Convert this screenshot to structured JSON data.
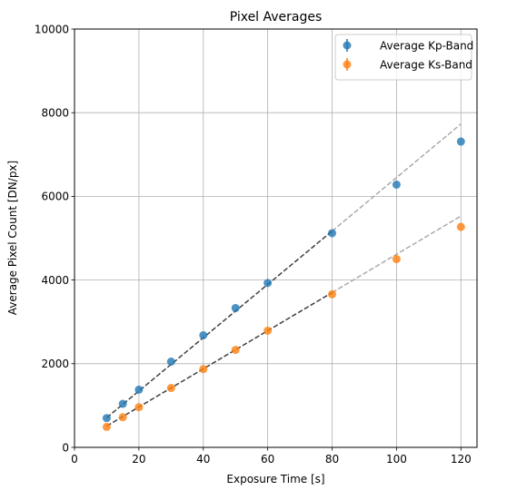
{
  "chart_data": {
    "type": "scatter",
    "title": "Pixel Averages",
    "xlabel": "Exposure Time [s]",
    "ylabel": "Average Pixel Count [DN/px]",
    "xlim": [
      0,
      125
    ],
    "ylim": [
      0,
      10000
    ],
    "xticks": [
      0,
      20,
      40,
      60,
      80,
      100,
      120
    ],
    "yticks": [
      0,
      2000,
      4000,
      6000,
      8000,
      10000
    ],
    "xtick_labels": [
      "0",
      "20",
      "40",
      "60",
      "80",
      "100",
      "120"
    ],
    "ytick_labels": [
      "0",
      "2000",
      "4000",
      "6000",
      "8000",
      "10000"
    ],
    "grid": true,
    "legend_position": "top-right",
    "series": [
      {
        "name": "Average Kp-Band",
        "color": "#1f77b4",
        "x": [
          10,
          15,
          20,
          30,
          40,
          50,
          60,
          80,
          100,
          120
        ],
        "y": [
          700,
          1040,
          1380,
          2050,
          2680,
          3330,
          3930,
          5120,
          6280,
          7310
        ]
      },
      {
        "name": "Average Ks-Band",
        "color": "#ff7f0e",
        "x": [
          10,
          15,
          20,
          30,
          40,
          50,
          60,
          80,
          100,
          120
        ],
        "y": [
          490,
          720,
          960,
          1420,
          1870,
          2330,
          2790,
          3660,
          4500,
          5270
        ]
      }
    ],
    "fit_lines": [
      {
        "series": "Average Kp-Band",
        "fit_x": [
          10,
          80
        ],
        "fit_y": [
          710,
          5170
        ],
        "extrapolation_x": [
          80,
          120
        ],
        "extrapolation_y": [
          5170,
          7730
        ]
      },
      {
        "series": "Average Ks-Band",
        "fit_x": [
          10,
          80
        ],
        "fit_y": [
          510,
          3700
        ],
        "extrapolation_x": [
          80,
          120
        ],
        "extrapolation_y": [
          3700,
          5530
        ]
      }
    ],
    "fit_color": "#404040",
    "extrapolation_color": "#aaaaaa"
  }
}
